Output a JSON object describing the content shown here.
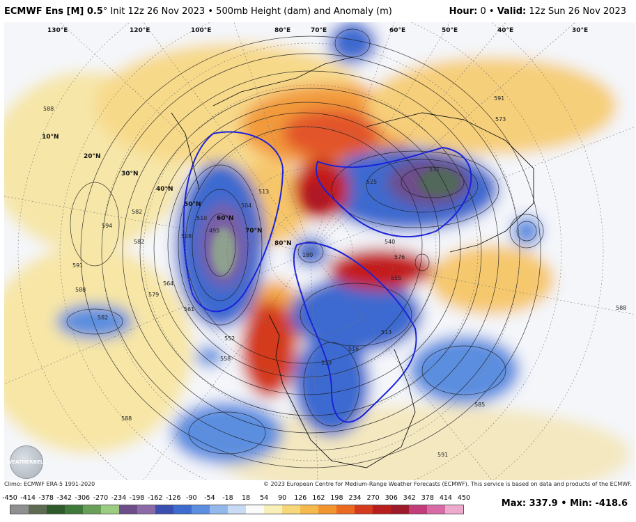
{
  "header": {
    "model": "ECMWF Ens [M] 0.5",
    "degree": "°",
    "init": "Init 12z 26 Nov 2023",
    "product": "500mb Height (dam) and Anomaly (m)",
    "hour_label": "Hour:",
    "hour_value": "0",
    "valid_label": "Valid:",
    "valid_value": "12z Sun 26 Nov 2023"
  },
  "footer": {
    "climo": "Climo: ECMWF ERA-5 1991-2020",
    "copyright": "© 2023 European Centre for Medium-Range Weather Forecasts (ECMWF). This service is based on data and products of the ECMWF."
  },
  "colorbar": {
    "labels": [
      "-450",
      "-414",
      "-378",
      "-342",
      "-306",
      "-270",
      "-234",
      "-198",
      "-162",
      "-126",
      "-90",
      "-54",
      "-18",
      "18",
      "54",
      "90",
      "126",
      "162",
      "198",
      "234",
      "270",
      "306",
      "342",
      "378",
      "414",
      "450"
    ],
    "colors": [
      "#8f8f8f",
      "#5e6b52",
      "#2f5a2b",
      "#3f7a3a",
      "#68a05a",
      "#9ccc80",
      "#6d4e8a",
      "#8c6aa8",
      "#3a4fb0",
      "#3e6bd0",
      "#5b8ee0",
      "#94b8ec",
      "#c8daf4",
      "#fafafa",
      "#f7f0b8",
      "#f6d77a",
      "#f6b94c",
      "#f2952f",
      "#ea6a22",
      "#d43b1e",
      "#b81e1e",
      "#9c1a2a",
      "#c23c7a",
      "#d86aa6",
      "#eeaacc"
    ]
  },
  "stats": {
    "max_label": "Max:",
    "max_value": "337.9",
    "min_label": "Min:",
    "min_value": "-418.6"
  },
  "logo": {
    "text": "WEATHERBELL"
  },
  "map_labels": {
    "lat": [
      "10°N",
      "20°N",
      "30°N",
      "40°N",
      "50°N",
      "60°N",
      "70°N",
      "80°N"
    ],
    "lon": [
      "130°E",
      "120°E",
      "100°E",
      "80°E",
      "70°E",
      "60°E",
      "50°E",
      "40°E",
      "30°E"
    ],
    "contours": [
      "588",
      "588",
      "594",
      "582",
      "591",
      "588",
      "582",
      "579",
      "564",
      "561",
      "558",
      "528",
      "510",
      "495",
      "504",
      "513",
      "525",
      "540",
      "531",
      "555",
      "519",
      "516",
      "513",
      "180",
      "585",
      "591",
      "588",
      "573",
      "591",
      "582",
      "576",
      "552"
    ]
  }
}
